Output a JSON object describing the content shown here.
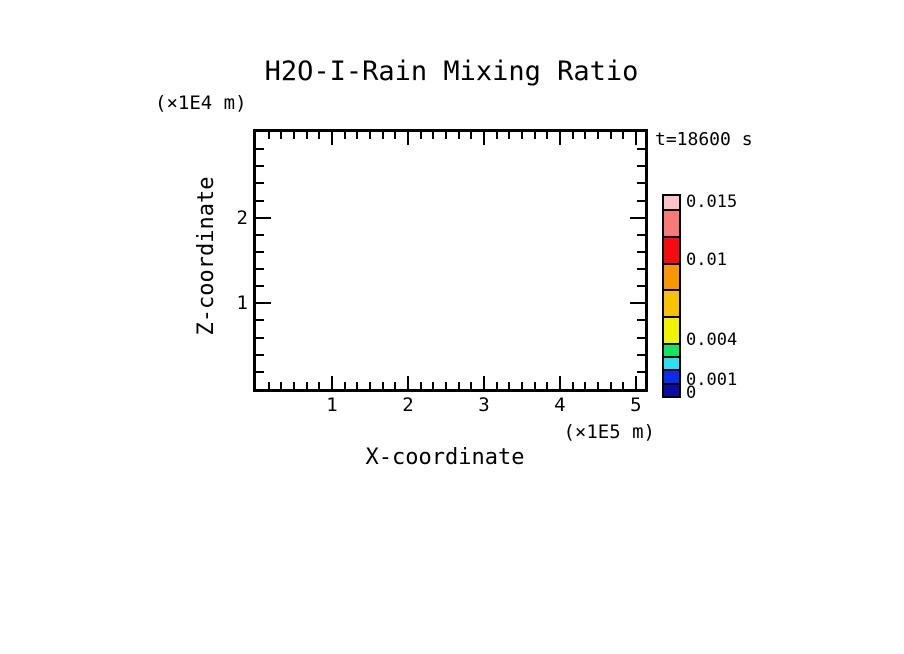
{
  "window": {
    "background": "#FFFFFF",
    "ink": "#000000"
  },
  "title": "H2O-I-Rain Mixing Ratio",
  "time_annotation": "t=18600 s",
  "axes": {
    "x": {
      "title": "X-coordinate",
      "unit": "(×1E5 m)",
      "min": 0,
      "max": 5.12,
      "major_ticks": [
        1,
        2,
        3,
        4,
        5
      ],
      "minor_divisions_per_unit": 6
    },
    "z": {
      "title": "Z-coordinate",
      "unit": "(×1E4 m)",
      "min": 0,
      "max": 3,
      "major_ticks": [
        1,
        2
      ],
      "minor_step": 0.2
    }
  },
  "colorbar": {
    "min": 0,
    "max": 0.015,
    "levels": [
      0,
      0.001,
      0.002,
      0.003,
      0.004,
      0.006,
      0.008,
      0.01,
      0.012,
      0.014,
      0.015
    ],
    "segment_colors_bottom_to_top": [
      "#0A0AA5",
      "#0A2BF0",
      "#29E1F2",
      "#0FE763",
      "#EFF500",
      "#F7C300",
      "#FA9600",
      "#FA0A0F",
      "#F77B73",
      "#FBC2C7"
    ],
    "labels": [
      {
        "text": "0.015",
        "value": 0.015
      },
      {
        "text": "0.01",
        "value": 0.01
      },
      {
        "text": "0.004",
        "value": 0.004
      },
      {
        "text": "0.001",
        "value": 0.001
      },
      {
        "text": "0",
        "value": 0
      }
    ]
  },
  "chart_data": {
    "type": "contour",
    "title": "H2O-I-Rain Mixing Ratio",
    "annotation": "t=18600 s",
    "xlabel": "X-coordinate",
    "x_unit": "(×1E5 m)",
    "xlim": [
      0,
      5.12
    ],
    "x_major_ticks": [
      1,
      2,
      3,
      4,
      5
    ],
    "ylabel": "Z-coordinate",
    "y_unit": "(×1E4 m)",
    "ylim": [
      0,
      3
    ],
    "y_major_ticks": [
      1,
      2
    ],
    "grid": false,
    "legend_position": "colorbar-right",
    "contour_levels": [
      0,
      0.001,
      0.002,
      0.003,
      0.004,
      0.006,
      0.008,
      0.01,
      0.012,
      0.014,
      0.015
    ],
    "labeled_levels": [
      0.015,
      0.01,
      0.004,
      0.001,
      0
    ],
    "colorbar_colors_low_to_high": [
      "#0A0AA5",
      "#0A2BF0",
      "#29E1F2",
      "#0FE763",
      "#EFF500",
      "#F7C300",
      "#FA9600",
      "#FA0A0F",
      "#F77B73",
      "#FBC2C7"
    ],
    "series": [],
    "note": "plot area is empty - no contour values visible at this time step"
  }
}
